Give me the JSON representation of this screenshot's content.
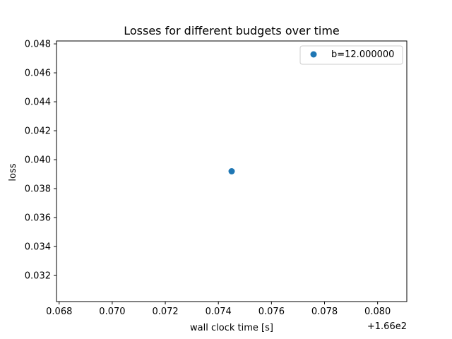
{
  "chart_data": {
    "type": "scatter",
    "title": "Losses for different budgets over time",
    "xlabel": "wall clock time [s]",
    "ylabel": "loss",
    "x_offset_label": "+1.66e2",
    "xlim": [
      0.0679,
      0.0811
    ],
    "ylim": [
      0.0302,
      0.0482
    ],
    "x_ticks": [
      "0.068",
      "0.070",
      "0.072",
      "0.074",
      "0.076",
      "0.078",
      "0.080"
    ],
    "y_ticks": [
      "0.032",
      "0.034",
      "0.036",
      "0.038",
      "0.040",
      "0.042",
      "0.044",
      "0.046",
      "0.048"
    ],
    "legend_position": "top-right",
    "grid": false,
    "series": [
      {
        "name": "b=12.000000",
        "color": "#1f77b4",
        "points": [
          {
            "x": 0.0745,
            "y": 0.0392
          }
        ]
      }
    ]
  }
}
